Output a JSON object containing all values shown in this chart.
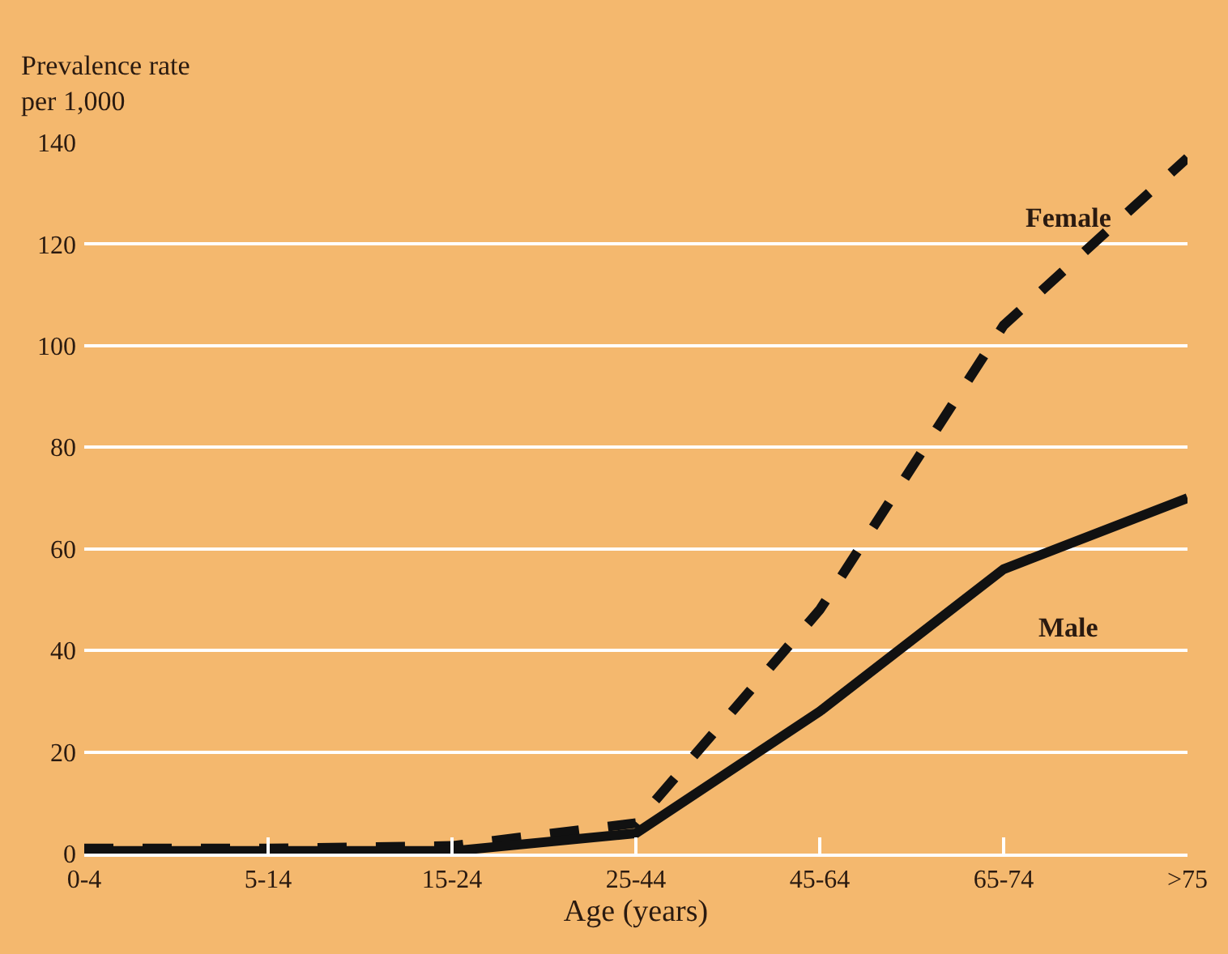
{
  "chart_data": {
    "type": "line",
    "ylabel": "Prevalence rate\nper 1,000",
    "xlabel": "Age (years)",
    "categories": [
      "0-4",
      "5-14",
      "15-24",
      "25-44",
      "45-64",
      "65-74",
      ">75"
    ],
    "series": [
      {
        "name": "Female",
        "color": "#111111",
        "line_style": "dashed",
        "values": [
          1,
          1,
          1.5,
          6,
          48,
          104,
          137
        ]
      },
      {
        "name": "Male",
        "color": "#111111",
        "line_style": "solid",
        "values": [
          0.5,
          0.5,
          0.5,
          4,
          28,
          56,
          70
        ]
      }
    ],
    "ylim": [
      0,
      140
    ],
    "yticks": [
      0,
      20,
      40,
      60,
      80,
      100,
      120,
      140
    ],
    "grid": "y",
    "legend": false,
    "marker": "none"
  }
}
